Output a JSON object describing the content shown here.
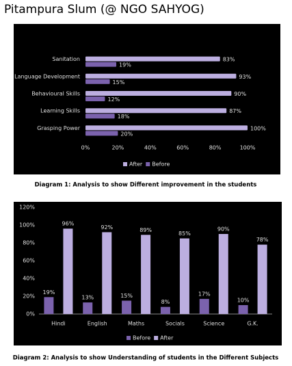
{
  "title": "Pitampura Slum (@ NGO SAHYOG)",
  "chart_data": [
    {
      "type": "bar",
      "orientation": "horizontal",
      "categories": [
        "Sanitation",
        "Language Development",
        "Behavioural Skills",
        "Learning Skills",
        "Grasping Power"
      ],
      "series": [
        {
          "name": "After",
          "color": "#bcaee0",
          "values": [
            83,
            93,
            90,
            87,
            100
          ],
          "value_labels": [
            "83%",
            "93%",
            "90%",
            "87%",
            "100%"
          ]
        },
        {
          "name": "Before",
          "color": "#7b62ad",
          "values": [
            19,
            15,
            12,
            18,
            20
          ],
          "value_labels": [
            "19%",
            "15%",
            "12%",
            "18%",
            "20%"
          ]
        }
      ],
      "xlim": [
        0,
        100
      ],
      "xticks": [
        {
          "value": 0,
          "label": "0%"
        },
        {
          "value": 20,
          "label": "20%"
        },
        {
          "value": 40,
          "label": "40%"
        },
        {
          "value": 60,
          "label": "60%"
        },
        {
          "value": 80,
          "label": "80%"
        },
        {
          "value": 100,
          "label": "100%"
        }
      ],
      "grid": false,
      "legend": "bottom",
      "caption": "Diagram 1: Analysis to show Different improvement in the students"
    },
    {
      "type": "bar",
      "orientation": "vertical",
      "categories": [
        "Hindi",
        "English",
        "Maths",
        "Socials",
        "Science",
        "G.K."
      ],
      "series": [
        {
          "name": "Before",
          "color": "#7b62ad",
          "values": [
            19,
            13,
            15,
            8,
            17,
            10
          ],
          "value_labels": [
            "19%",
            "13%",
            "15%",
            "8%",
            "17%",
            "10%"
          ]
        },
        {
          "name": "After",
          "color": "#bcaee0",
          "values": [
            96,
            92,
            89,
            85,
            90,
            78
          ],
          "value_labels": [
            "96%",
            "92%",
            "89%",
            "85%",
            "90%",
            "78%"
          ]
        }
      ],
      "ylim": [
        0,
        120
      ],
      "yticks": [
        {
          "value": 0,
          "label": "0%"
        },
        {
          "value": 20,
          "label": "20%"
        },
        {
          "value": 40,
          "label": "40%"
        },
        {
          "value": 60,
          "label": "60%"
        },
        {
          "value": 80,
          "label": "80%"
        },
        {
          "value": 100,
          "label": "100%"
        },
        {
          "value": 120,
          "label": "120%"
        }
      ],
      "grid": false,
      "legend": "bottom",
      "caption": "Diagram 2: Analysis to show Understanding of students in the Different Subjects"
    }
  ]
}
